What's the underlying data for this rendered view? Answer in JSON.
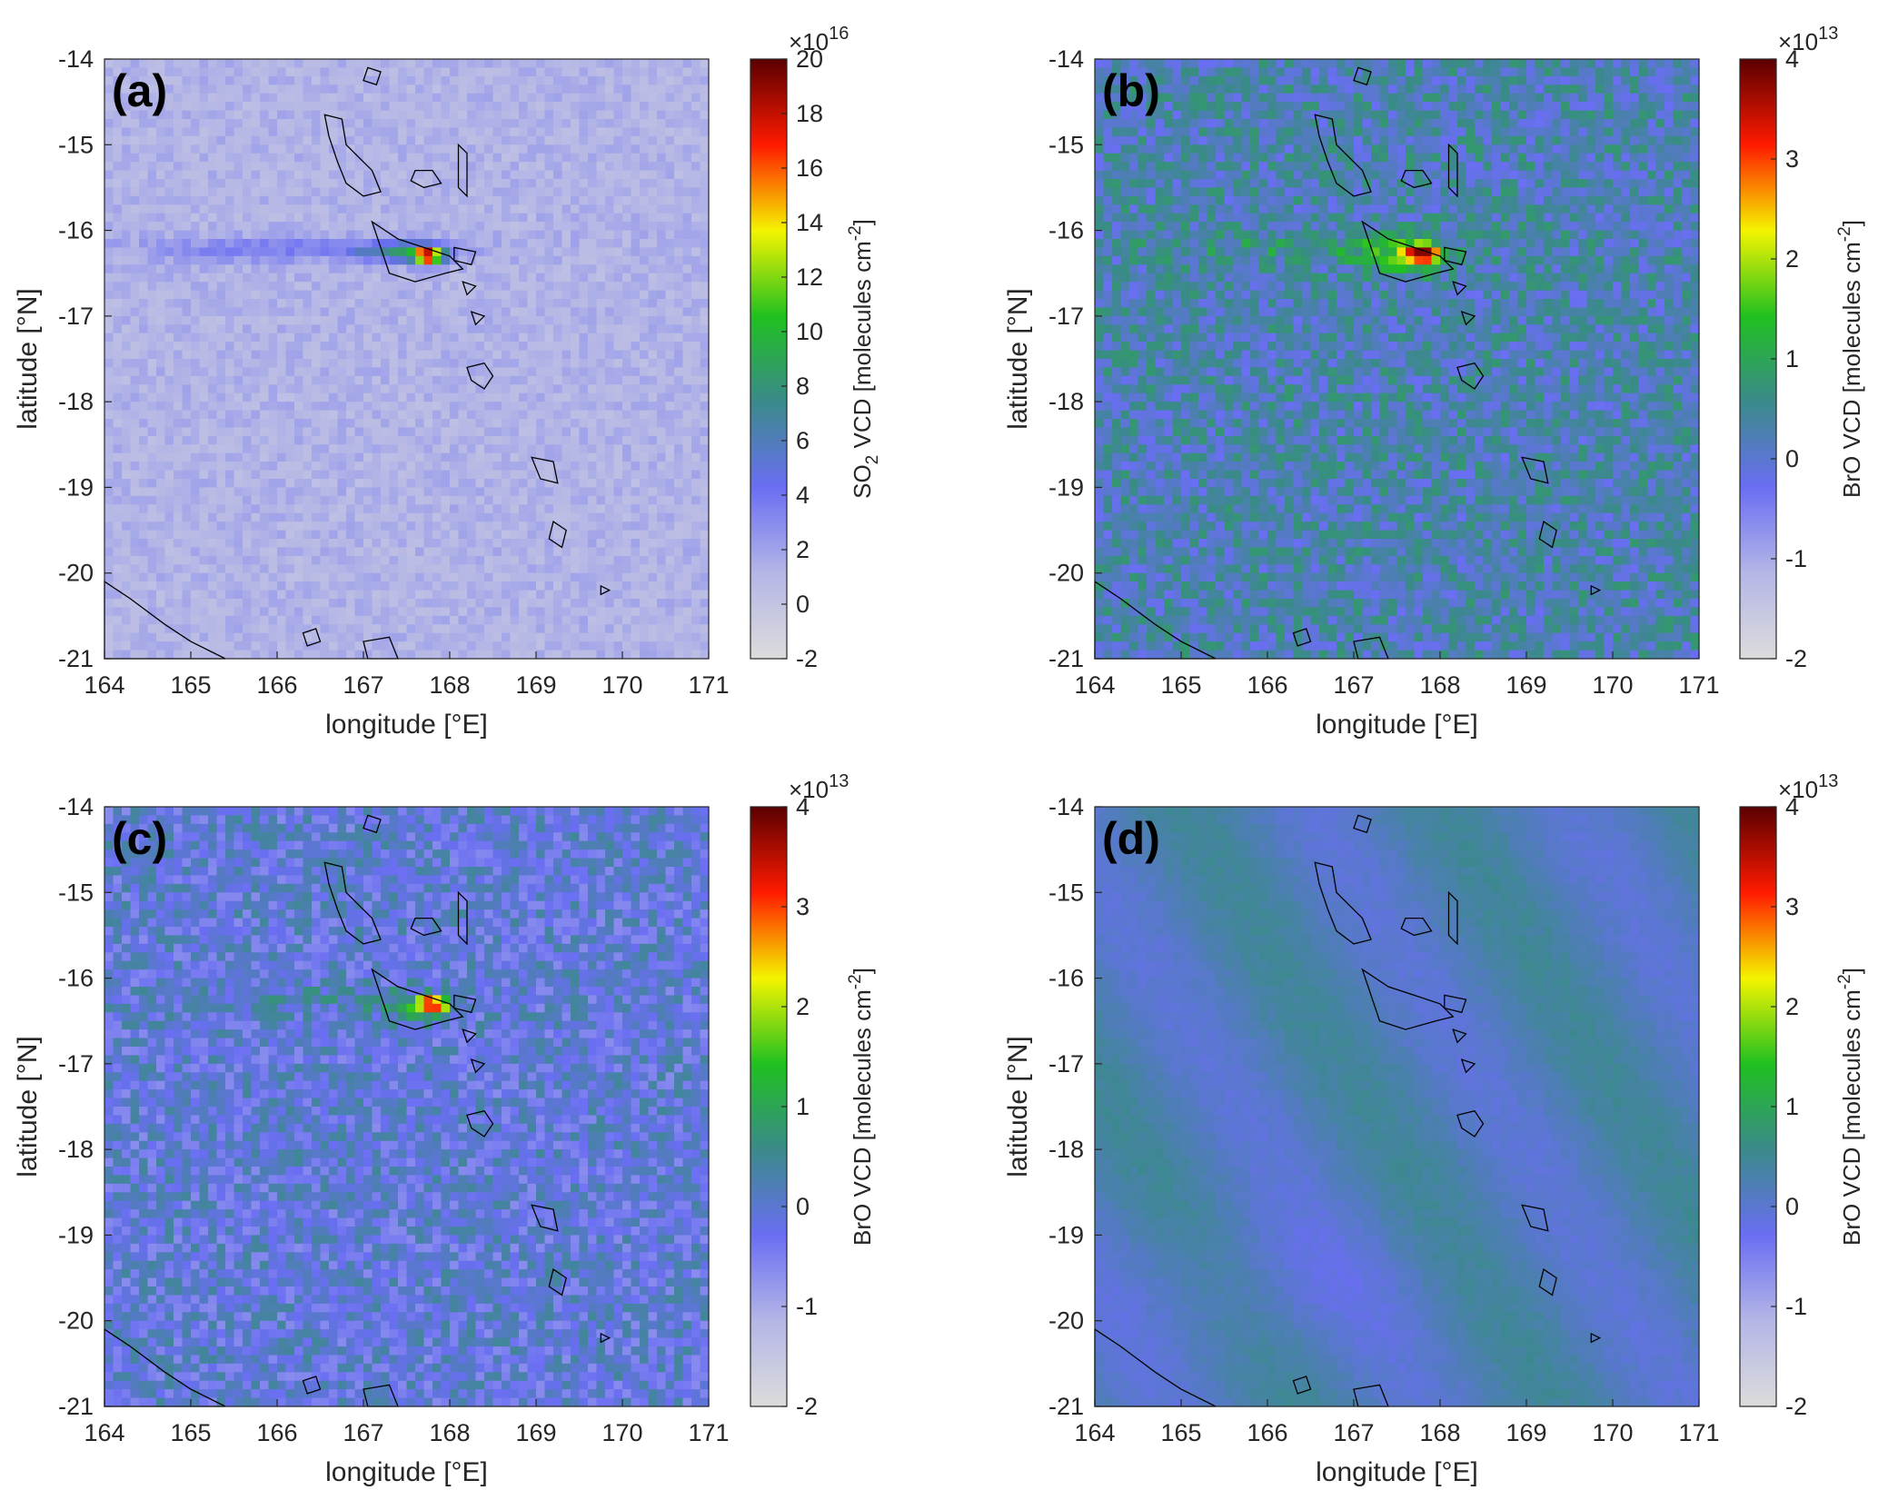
{
  "chart_data": [
    {
      "type": "heatmap",
      "panel_label": "(a)",
      "xlabel": "longitude [°E]",
      "ylabel": "latitude [°N]",
      "xlim": [
        164,
        171
      ],
      "ylim": [
        -21,
        -14
      ],
      "xticks": [
        "164",
        "165",
        "166",
        "167",
        "168",
        "169",
        "170",
        "171"
      ],
      "yticks": [
        "-14",
        "-15",
        "-16",
        "-17",
        "-18",
        "-19",
        "-20",
        "-21"
      ],
      "colorbar": {
        "label_main": "SO",
        "label_sub": "2",
        "label_rest": " VCD [molecules cm",
        "label_sup": "-2",
        "label_end": "]",
        "exponent_base": "×10",
        "exponent_power": "16",
        "range": [
          -2,
          20
        ],
        "ticks": [
          "20",
          "18",
          "16",
          "14",
          "12",
          "10",
          "8",
          "6",
          "4",
          "2",
          "0",
          "-2"
        ]
      },
      "background_value": 1.2,
      "noise": 0.8,
      "plume": [
        {
          "lon": 167.75,
          "lat": -16.3,
          "value": 16.0,
          "sx": 0.12,
          "sy": 0.07
        },
        {
          "lon": 167.45,
          "lat": -16.25,
          "value": 5.0,
          "sx": 0.35,
          "sy": 0.08
        },
        {
          "lon": 166.2,
          "lat": -16.22,
          "value": 2.4,
          "sx": 1.3,
          "sy": 0.1
        }
      ]
    },
    {
      "type": "heatmap",
      "panel_label": "(b)",
      "xlabel": "longitude [°E]",
      "ylabel": "latitude [°N]",
      "xlim": [
        164,
        171
      ],
      "ylim": [
        -21,
        -14
      ],
      "xticks": [
        "164",
        "165",
        "166",
        "167",
        "168",
        "169",
        "170",
        "171"
      ],
      "yticks": [
        "-14",
        "-15",
        "-16",
        "-17",
        "-18",
        "-19",
        "-20",
        "-21"
      ],
      "colorbar": {
        "label_main": "BrO VCD [molecules cm",
        "label_sub": "",
        "label_rest": "",
        "label_sup": "-2",
        "label_end": "]",
        "exponent_base": "×10",
        "exponent_power": "13",
        "range": [
          -2,
          4
        ],
        "ticks": [
          "4",
          "3",
          "2",
          "1",
          "0",
          "-1",
          "-2"
        ]
      },
      "background_value": 0.25,
      "noise": 0.55,
      "plume": [
        {
          "lon": 167.8,
          "lat": -16.28,
          "value": 3.2,
          "sx": 0.13,
          "sy": 0.07
        },
        {
          "lon": 167.6,
          "lat": -16.3,
          "value": 1.2,
          "sx": 0.35,
          "sy": 0.15
        },
        {
          "lon": 166.5,
          "lat": -16.2,
          "value": 0.5,
          "sx": 1.2,
          "sy": 0.12
        }
      ]
    },
    {
      "type": "heatmap",
      "panel_label": "(c)",
      "xlabel": "longitude [°E]",
      "ylabel": "latitude [°N]",
      "xlim": [
        164,
        171
      ],
      "ylim": [
        -21,
        -14
      ],
      "xticks": [
        "164",
        "165",
        "166",
        "167",
        "168",
        "169",
        "170",
        "171"
      ],
      "yticks": [
        "-14",
        "-15",
        "-16",
        "-17",
        "-18",
        "-19",
        "-20",
        "-21"
      ],
      "colorbar": {
        "label_main": "BrO VCD [molecules cm",
        "label_sub": "",
        "label_rest": "",
        "label_sup": "-2",
        "label_end": "]",
        "exponent_base": "×10",
        "exponent_power": "13",
        "range": [
          -2,
          4
        ],
        "ticks": [
          "4",
          "3",
          "2",
          "1",
          "0",
          "-1",
          "-2"
        ]
      },
      "background_value": -0.1,
      "noise": 0.55,
      "plume": [
        {
          "lon": 167.8,
          "lat": -16.3,
          "value": 3.0,
          "sx": 0.12,
          "sy": 0.06
        },
        {
          "lon": 167.6,
          "lat": -16.35,
          "value": 1.0,
          "sx": 0.3,
          "sy": 0.12
        },
        {
          "lon": 166.3,
          "lat": -16.25,
          "value": 0.4,
          "sx": 1.1,
          "sy": 0.1
        }
      ]
    },
    {
      "type": "heatmap",
      "panel_label": "(d)",
      "xlabel": "longitude [°E]",
      "ylabel": "latitude [°N]",
      "xlim": [
        164,
        171
      ],
      "ylim": [
        -21,
        -14
      ],
      "xticks": [
        "164",
        "165",
        "166",
        "167",
        "168",
        "169",
        "170",
        "171"
      ],
      "yticks": [
        "-14",
        "-15",
        "-16",
        "-17",
        "-18",
        "-19",
        "-20",
        "-21"
      ],
      "colorbar": {
        "label_main": "BrO VCD [molecules cm",
        "label_sub": "",
        "label_rest": "",
        "label_sup": "-2",
        "label_end": "]",
        "exponent_base": "×10",
        "exponent_power": "13",
        "range": [
          -2,
          4
        ],
        "ticks": [
          "4",
          "3",
          "2",
          "1",
          "0",
          "-1",
          "-2"
        ]
      },
      "background_value": 0.2,
      "noise": 0.08,
      "plume": []
    }
  ],
  "colors": {
    "colormap": [
      "#dcdcdc",
      "#b4b6e6",
      "#6a6ef2",
      "#3a8a8a",
      "#20c020",
      "#f4f400",
      "#ff1a00",
      "#5a0000"
    ],
    "coastline": "#000000",
    "axis": "#262626"
  },
  "islands": [
    [
      [
        166.55,
        -14.65
      ],
      [
        166.75,
        -14.7
      ],
      [
        166.8,
        -15.0
      ],
      [
        166.95,
        -15.15
      ],
      [
        167.1,
        -15.3
      ],
      [
        167.2,
        -15.55
      ],
      [
        167.0,
        -15.6
      ],
      [
        166.8,
        -15.45
      ],
      [
        166.7,
        -15.2
      ],
      [
        166.6,
        -14.9
      ]
    ],
    [
      [
        167.05,
        -14.1
      ],
      [
        167.2,
        -14.15
      ],
      [
        167.15,
        -14.3
      ],
      [
        167.0,
        -14.25
      ]
    ],
    [
      [
        167.6,
        -15.3
      ],
      [
        167.8,
        -15.3
      ],
      [
        167.9,
        -15.45
      ],
      [
        167.7,
        -15.5
      ],
      [
        167.55,
        -15.42
      ]
    ],
    [
      [
        168.1,
        -15.0
      ],
      [
        168.2,
        -15.1
      ],
      [
        168.2,
        -15.6
      ],
      [
        168.1,
        -15.5
      ]
    ],
    [
      [
        167.1,
        -15.9
      ],
      [
        167.4,
        -16.1
      ],
      [
        167.7,
        -16.2
      ],
      [
        168.0,
        -16.3
      ],
      [
        168.15,
        -16.45
      ],
      [
        167.95,
        -16.5
      ],
      [
        167.6,
        -16.6
      ],
      [
        167.3,
        -16.5
      ],
      [
        167.2,
        -16.2
      ]
    ],
    [
      [
        168.05,
        -16.2
      ],
      [
        168.3,
        -16.25
      ],
      [
        168.25,
        -16.4
      ],
      [
        168.05,
        -16.35
      ]
    ],
    [
      [
        168.15,
        -16.6
      ],
      [
        168.3,
        -16.65
      ],
      [
        168.2,
        -16.75
      ]
    ],
    [
      [
        168.25,
        -16.95
      ],
      [
        168.4,
        -17.0
      ],
      [
        168.3,
        -17.1
      ]
    ],
    [
      [
        168.2,
        -17.6
      ],
      [
        168.4,
        -17.55
      ],
      [
        168.5,
        -17.7
      ],
      [
        168.4,
        -17.85
      ],
      [
        168.25,
        -17.75
      ]
    ],
    [
      [
        168.95,
        -18.65
      ],
      [
        169.2,
        -18.7
      ],
      [
        169.25,
        -18.95
      ],
      [
        169.05,
        -18.9
      ]
    ],
    [
      [
        169.2,
        -19.4
      ],
      [
        169.35,
        -19.5
      ],
      [
        169.3,
        -19.7
      ],
      [
        169.15,
        -19.6
      ]
    ],
    [
      [
        169.75,
        -20.15
      ],
      [
        169.85,
        -20.2
      ],
      [
        169.75,
        -20.25
      ]
    ],
    [
      [
        164.0,
        -20.1
      ],
      [
        164.3,
        -20.3
      ],
      [
        164.7,
        -20.6
      ],
      [
        165.0,
        -20.8
      ],
      [
        165.4,
        -21.0
      ],
      [
        164.0,
        -21.0
      ]
    ],
    [
      [
        166.3,
        -20.7
      ],
      [
        166.45,
        -20.65
      ],
      [
        166.5,
        -20.8
      ],
      [
        166.35,
        -20.85
      ]
    ],
    [
      [
        167.0,
        -20.8
      ],
      [
        167.3,
        -20.75
      ],
      [
        167.4,
        -21.0
      ],
      [
        167.05,
        -21.0
      ]
    ]
  ]
}
